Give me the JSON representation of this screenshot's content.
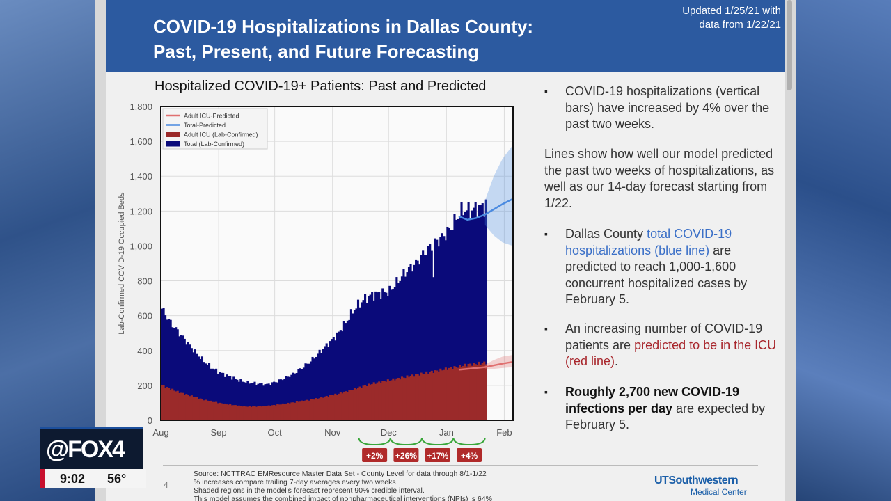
{
  "header": {
    "title_line1": "COVID-19 Hospitalizations in Dallas County:",
    "title_line2": "Past, Present, and Future Forecasting",
    "updated_line1": "Updated 1/25/21 with",
    "updated_line2": "data from 1/22/21"
  },
  "bullets": {
    "b1": "COVID-19 hospitalizations (vertical bars) have increased by 4% over the past two weeks.",
    "p2": "Lines show how well our model predicted the past two weeks of hospitalizations, as well as our 14-day forecast starting from 1/22.",
    "b3_pre": "Dallas County ",
    "b3_hl": "total COVID-19 hospitalizations (blue line)",
    "b3_post": " are predicted to reach 1,000-1,600 concurrent hospitalized cases by February 5.",
    "b4_pre": "An increasing number of COVID-19 patients are ",
    "b4_hl": "predicted to be in the ICU (red line)",
    "b4_post": ".",
    "b5_bold": "Roughly 2,700 new COVID-19 infections per day",
    "b5_post": " are expected by February 5."
  },
  "footer": {
    "page": "4",
    "source1": "Source: NCTTRAC EMResource Master Data Set - County Level for data through 8/1-1/22",
    "source2": "% increases compare trailing 7-day averages every two weeks",
    "source3": "Shaded regions in the model's forecast represent 90% credible interval.",
    "source4": "This model assumes the combined impact of nonpharmaceutical interventions (NPIs) is 64%",
    "logo_line1": "UTSouthwestern",
    "logo_line2": "Medical Center"
  },
  "overlay": {
    "logo": "@FOX4",
    "time": "9:02",
    "temp": "56°"
  },
  "colors": {
    "header_bg": "#2c5aa0",
    "total_bar": "#0a0a7a",
    "icu_bar": "#9b2a2a",
    "predicted_total": "#4a8ae0",
    "predicted_icu": "#e07070",
    "change_box": "#b02a2a",
    "bracket": "#3aa63a"
  },
  "chart_data": {
    "type": "bar",
    "title": "Hospitalized COVID-19+ Patients: Past and Predicted",
    "ylabel": "Lab-Confirmed COVID-19 Occupied Beds",
    "xlabel": "",
    "ylim": [
      0,
      1800
    ],
    "yticks": [
      0,
      200,
      400,
      600,
      800,
      1000,
      1200,
      1400,
      1600,
      1800
    ],
    "ytick_labels": [
      "0",
      "200",
      "400",
      "600",
      "800",
      "1,000",
      "1,200",
      "1,400",
      "1,600",
      "1,800"
    ],
    "xlim_days": [
      0,
      201
    ],
    "xticks": [
      {
        "label": "Aug",
        "day": 0
      },
      {
        "label": "Sep",
        "day": 33
      },
      {
        "label": "Oct",
        "day": 65
      },
      {
        "label": "Nov",
        "day": 98
      },
      {
        "label": "Dec",
        "day": 130
      },
      {
        "label": "Jan",
        "day": 163
      },
      {
        "label": "Feb",
        "day": 196
      }
    ],
    "legend": {
      "position": "top-left",
      "entries": [
        "Adult ICU-Predicted",
        "Total-Predicted",
        "Adult ICU (Lab-Confirmed)",
        "Total (Lab-Confirmed)"
      ]
    },
    "series": [
      {
        "name": "Total (Lab-Confirmed)",
        "kind": "bar",
        "points": [
          [
            0,
            640
          ],
          [
            5,
            560
          ],
          [
            10,
            500
          ],
          [
            15,
            440
          ],
          [
            20,
            380
          ],
          [
            25,
            330
          ],
          [
            30,
            290
          ],
          [
            35,
            265
          ],
          [
            40,
            245
          ],
          [
            45,
            225
          ],
          [
            50,
            215
          ],
          [
            55,
            210
          ],
          [
            60,
            205
          ],
          [
            65,
            220
          ],
          [
            70,
            240
          ],
          [
            75,
            265
          ],
          [
            80,
            300
          ],
          [
            85,
            340
          ],
          [
            90,
            390
          ],
          [
            95,
            440
          ],
          [
            100,
            490
          ],
          [
            105,
            560
          ],
          [
            110,
            640
          ],
          [
            115,
            690
          ],
          [
            120,
            720
          ],
          [
            125,
            730
          ],
          [
            130,
            740
          ],
          [
            135,
            800
          ],
          [
            140,
            860
          ],
          [
            145,
            900
          ],
          [
            150,
            960
          ],
          [
            155,
            1010
          ],
          [
            160,
            1050
          ],
          [
            163,
            1080
          ],
          [
            166,
            1120
          ],
          [
            170,
            1190
          ],
          [
            173,
            1210
          ],
          [
            176,
            1200
          ],
          [
            178,
            1210
          ],
          [
            185,
            1230
          ]
        ],
        "last_day": 185
      },
      {
        "name": "Adult ICU (Lab-Confirmed)",
        "kind": "bar",
        "points": [
          [
            0,
            200
          ],
          [
            5,
            180
          ],
          [
            10,
            160
          ],
          [
            15,
            145
          ],
          [
            20,
            130
          ],
          [
            25,
            115
          ],
          [
            30,
            105
          ],
          [
            35,
            95
          ],
          [
            40,
            88
          ],
          [
            45,
            82
          ],
          [
            50,
            78
          ],
          [
            55,
            80
          ],
          [
            60,
            82
          ],
          [
            65,
            88
          ],
          [
            70,
            95
          ],
          [
            75,
            102
          ],
          [
            80,
            110
          ],
          [
            85,
            118
          ],
          [
            90,
            128
          ],
          [
            95,
            140
          ],
          [
            100,
            150
          ],
          [
            105,
            165
          ],
          [
            110,
            180
          ],
          [
            115,
            195
          ],
          [
            120,
            210
          ],
          [
            125,
            220
          ],
          [
            130,
            230
          ],
          [
            135,
            240
          ],
          [
            140,
            250
          ],
          [
            145,
            260
          ],
          [
            150,
            270
          ],
          [
            155,
            280
          ],
          [
            160,
            290
          ],
          [
            165,
            300
          ],
          [
            170,
            310
          ],
          [
            175,
            320
          ],
          [
            180,
            325
          ],
          [
            185,
            330
          ]
        ],
        "last_day": 185
      },
      {
        "name": "Total-Predicted",
        "kind": "line",
        "points": [
          [
            170,
            1170
          ],
          [
            175,
            1150
          ],
          [
            180,
            1160
          ],
          [
            185,
            1180
          ],
          [
            190,
            1210
          ],
          [
            195,
            1240
          ],
          [
            201,
            1270
          ]
        ],
        "band_upper": [
          [
            185,
            1260
          ],
          [
            190,
            1400
          ],
          [
            195,
            1500
          ],
          [
            201,
            1580
          ]
        ],
        "band_lower": [
          [
            185,
            1120
          ],
          [
            190,
            1060
          ],
          [
            195,
            1020
          ],
          [
            201,
            1000
          ]
        ]
      },
      {
        "name": "Adult ICU-Predicted",
        "kind": "line",
        "points": [
          [
            170,
            290
          ],
          [
            175,
            295
          ],
          [
            180,
            300
          ],
          [
            185,
            305
          ],
          [
            190,
            315
          ],
          [
            195,
            325
          ],
          [
            201,
            335
          ]
        ],
        "band_upper": [
          [
            185,
            320
          ],
          [
            190,
            345
          ],
          [
            195,
            365
          ],
          [
            201,
            375
          ]
        ],
        "band_lower": [
          [
            185,
            295
          ],
          [
            190,
            295
          ],
          [
            195,
            300
          ],
          [
            201,
            305
          ]
        ]
      }
    ],
    "annotations": [
      {
        "label": "+2%",
        "from_day": 113,
        "to_day": 131
      },
      {
        "label": "+26%",
        "from_day": 131,
        "to_day": 149
      },
      {
        "label": "+17%",
        "from_day": 149,
        "to_day": 167
      },
      {
        "label": "+4%",
        "from_day": 167,
        "to_day": 185
      }
    ]
  }
}
